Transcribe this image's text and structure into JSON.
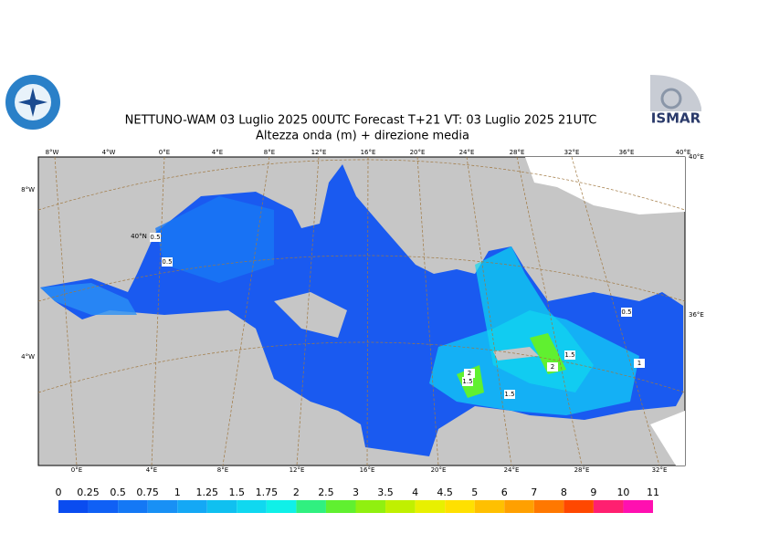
{
  "header": {
    "title": "NETTUNO-WAM  03  Luglio   2025 00UTC Forecast T+21 VT: 03  Luglio   2025 21UTC",
    "subtitle": "Altezza onda (m) + direzione media",
    "logo_right": "ISMAR"
  },
  "map": {
    "top_lon_labels": [
      "8°W",
      "4°W",
      "0°E",
      "4°E",
      "8°E",
      "12°E",
      "16°E",
      "20°E",
      "24°E",
      "28°E",
      "32°E",
      "36°E",
      "40°E"
    ],
    "bottom_lon_labels": [
      "0°E",
      "4°E",
      "8°E",
      "12°E",
      "16°E",
      "20°E",
      "24°E",
      "28°E",
      "32°E"
    ],
    "left_lat_labels": [
      "8°W",
      "4°W"
    ],
    "right_labels": [
      "40°E",
      "36°E"
    ],
    "grid_label": "40°N",
    "contour_labels": [
      "0.5",
      "0.5",
      "1.5",
      "2",
      "1.5",
      "2",
      "1.5",
      "1",
      "0.5"
    ]
  },
  "colorbar": {
    "levels": [
      0,
      0.25,
      0.5,
      0.75,
      1,
      1.25,
      1.5,
      1.75,
      2,
      2.5,
      3,
      3.5,
      4,
      4.5,
      5,
      6,
      7,
      8,
      9,
      10,
      11
    ],
    "colors": [
      "#0a4cf0",
      "#1060f5",
      "#1478f5",
      "#1890f5",
      "#14a8f5",
      "#10c0f0",
      "#10d8f0",
      "#10f0e8",
      "#30f080",
      "#60f030",
      "#90f010",
      "#c0f000",
      "#e8f000",
      "#ffe000",
      "#ffc000",
      "#ffa000",
      "#ff7800",
      "#ff4800",
      "#ff2070",
      "#ff10b0"
    ]
  }
}
